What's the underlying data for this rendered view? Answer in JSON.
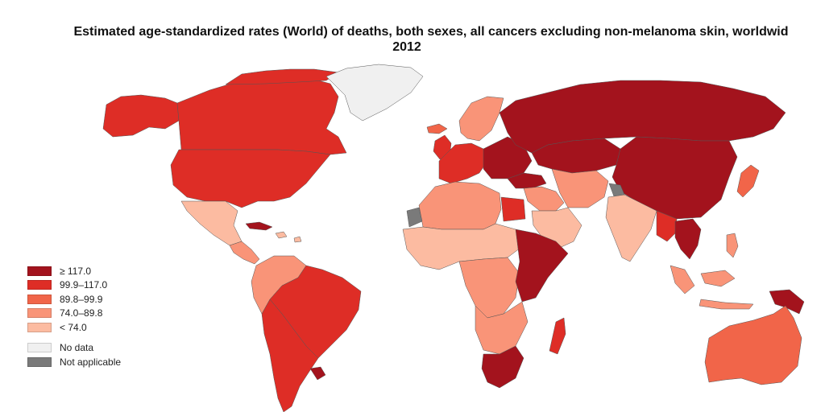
{
  "title": {
    "line1": "Estimated age-standardized rates (World) of deaths, both sexes, all cancers excluding non-melanoma skin, worldwid",
    "line2": "2012"
  },
  "legend": {
    "classes": [
      {
        "label": "≥ 117.0",
        "color": "#a3131d"
      },
      {
        "label": "99.9–117.0",
        "color": "#de2d26"
      },
      {
        "label": "89.8–99.9",
        "color": "#f16549"
      },
      {
        "label": "74.0–89.8",
        "color": "#f99478"
      },
      {
        "label": "< 74.0",
        "color": "#fcbba1"
      }
    ],
    "special": [
      {
        "label": "No data",
        "color": "#f0f0f0"
      },
      {
        "label": "Not applicable",
        "color": "#7a7a7a"
      }
    ]
  },
  "regions": {
    "alaska": "#de2d26",
    "canada": "#de2d26",
    "usa": "#de2d26",
    "greenland": "#f0f0f0",
    "mexico": "#fcbba1",
    "central_america": "#f99478",
    "cuba": "#a3131d",
    "south_america_north": "#f99478",
    "brazil": "#de2d26",
    "south_america_south": "#de2d26",
    "uruguay": "#a3131d",
    "iceland": "#f16549",
    "uk_ireland": "#de2d26",
    "scandinavia": "#f99478",
    "western_europe": "#de2d26",
    "eastern_europe": "#a3131d",
    "russia": "#a3131d",
    "central_asia": "#a3131d",
    "mongolia_china": "#a3131d",
    "japan_korea": "#f16549",
    "turkey": "#a3131d",
    "middle_east": "#f99478",
    "arabia": "#fcbba1",
    "iran": "#f99478",
    "india": "#fcbba1",
    "tibet_gray": "#7a7a7a",
    "western_sahara": "#7a7a7a",
    "southeast_asia": "#de2d26",
    "indochina": "#a3131d",
    "indonesia": "#f99478",
    "png": "#a3131d",
    "philippines": "#f99478",
    "north_africa": "#f99478",
    "egypt": "#de2d26",
    "west_africa": "#fcbba1",
    "central_africa": "#f99478",
    "east_africa": "#a3131d",
    "southern_africa": "#f99478",
    "south_africa": "#a3131d",
    "madagascar": "#de2d26",
    "australia": "#f16549",
    "caribbean_islands": "#fcbba1"
  }
}
